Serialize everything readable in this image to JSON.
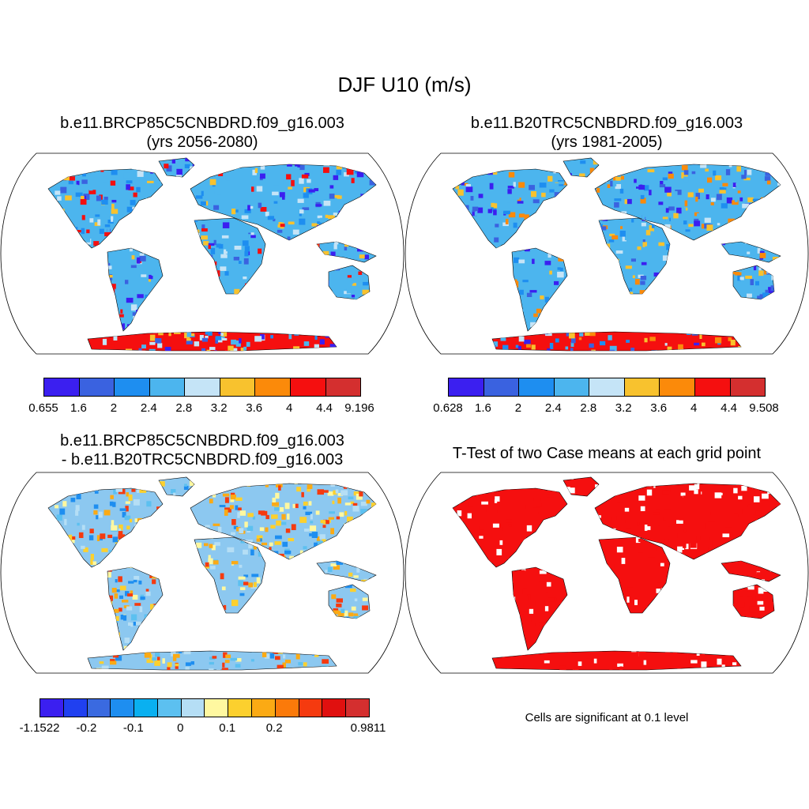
{
  "title": "DJF U10 (m/s)",
  "panels": [
    {
      "title_line1": "b.e11.BRCP85C5CNBDRD.f09_g16.003",
      "title_line2": "(yrs 2056-2080)",
      "legend_colors": [
        "#3b1ff0",
        "#3a62e0",
        "#1e8ef0",
        "#4cb5ee",
        "#c5e4f7",
        "#f8c22e",
        "#fb8a0a",
        "#f50f0f",
        "#d42f2f"
      ],
      "legend_ticks": [
        "0.655",
        "1.6",
        "2",
        "2.4",
        "2.8",
        "3.2",
        "3.6",
        "4",
        "4.4",
        "9.196"
      ]
    },
    {
      "title_line1": "b.e11.B20TRC5CNBDRD.f09_g16.003",
      "title_line2": "(yrs 1981-2005)",
      "legend_colors": [
        "#3b1ff0",
        "#3a62e0",
        "#1e8ef0",
        "#4cb5ee",
        "#c5e4f7",
        "#f8c22e",
        "#fb8a0a",
        "#f50f0f",
        "#d42f2f"
      ],
      "legend_ticks": [
        "0.628",
        "1.6",
        "2",
        "2.4",
        "2.8",
        "3.2",
        "3.6",
        "4",
        "4.4",
        "9.508"
      ]
    },
    {
      "title_line1": "b.e11.BRCP85C5CNBDRD.f09_g16.003",
      "title_line2": "- b.e11.B20TRC5CNBDRD.f09_g16.003",
      "legend_colors": [
        "#3b1ff0",
        "#2040f0",
        "#3a6ae0",
        "#1e8ef0",
        "#0ab0f0",
        "#5cc0f0",
        "#b5def5",
        "#fff8a0",
        "#fcd02e",
        "#fbaa14",
        "#fb7a0a",
        "#f53a0f",
        "#e0100f",
        "#d42f2f"
      ],
      "legend_ticks": [
        "-1.1522",
        "",
        "-0.2",
        "",
        "-0.1",
        "",
        "0",
        "",
        "0.1",
        "",
        "0.2",
        "",
        "",
        "",
        "0.9811"
      ]
    },
    {
      "title_line1": "T-Test of two Case means at each grid point",
      "note": "Cells are significant at 0.1 level"
    }
  ],
  "colors": {
    "land_panel1": "#4cb5ee",
    "land_panel2": "#4cb5ee",
    "land_panel3": "#8cc8f0",
    "land_panel4": "#f50f0f",
    "antarctica_panel1": "#f50f0f",
    "outline": "#000000"
  }
}
